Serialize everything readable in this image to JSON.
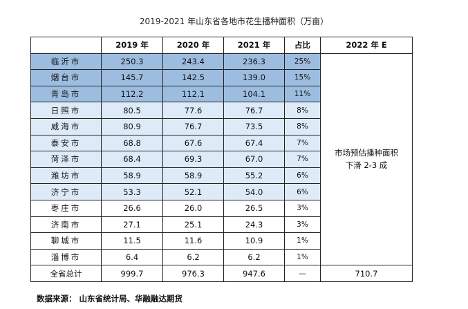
{
  "title": "2019-2021 年山东省各地市花生播种面积（万亩）",
  "headers": [
    "",
    "2019 年",
    "2020 年",
    "2021 年",
    "占比",
    "2022 年 E"
  ],
  "rows": [
    {
      "city": "临沂市",
      "y2019": "250.3",
      "y2020": "243.4",
      "y2021": "236.3",
      "share": "25%",
      "shade": "dark"
    },
    {
      "city": "烟台市",
      "y2019": "145.7",
      "y2020": "142.5",
      "y2021": "139.0",
      "share": "15%",
      "shade": "dark"
    },
    {
      "city": "青岛市",
      "y2019": "112.2",
      "y2020": "112.1",
      "y2021": "104.1",
      "share": "11%",
      "shade": "dark"
    },
    {
      "city": "日照市",
      "y2019": "80.5",
      "y2020": "77.6",
      "y2021": "76.7",
      "share": "8%",
      "shade": "light"
    },
    {
      "city": "威海市",
      "y2019": "80.9",
      "y2020": "76.7",
      "y2021": "73.5",
      "share": "8%",
      "shade": "light"
    },
    {
      "city": "泰安市",
      "y2019": "68.8",
      "y2020": "67.6",
      "y2021": "67.4",
      "share": "7%",
      "shade": "light"
    },
    {
      "city": "菏泽市",
      "y2019": "68.4",
      "y2020": "69.3",
      "y2021": "67.0",
      "share": "7%",
      "shade": "light"
    },
    {
      "city": "潍坊市",
      "y2019": "58.9",
      "y2020": "58.9",
      "y2021": "55.2",
      "share": "6%",
      "shade": "light"
    },
    {
      "city": "济宁市",
      "y2019": "53.3",
      "y2020": "52.1",
      "y2021": "54.0",
      "share": "6%",
      "shade": "light"
    },
    {
      "city": "枣庄市",
      "y2019": "26.6",
      "y2020": "26.0",
      "y2021": "26.5",
      "share": "3%",
      "shade": "plain"
    },
    {
      "city": "济南市",
      "y2019": "27.1",
      "y2020": "25.1",
      "y2021": "24.3",
      "share": "3%",
      "shade": "plain"
    },
    {
      "city": "聊城市",
      "y2019": "11.5",
      "y2020": "11.6",
      "y2021": "10.9",
      "share": "1%",
      "shade": "plain"
    },
    {
      "city": "淄博市",
      "y2019": "6.4",
      "y2020": "6.2",
      "y2021": "6.2",
      "share": "1%",
      "shade": "plain"
    }
  ],
  "note": {
    "line1": "市场预估播种面积",
    "line2": "下滑 2-3 成"
  },
  "total": {
    "label": "全省总计",
    "y2019": "999.7",
    "y2020": "976.3",
    "y2021": "947.6",
    "share": "—",
    "y2022e": "710.7"
  },
  "source": "数据来源：    山东省统计局、华融融达期货",
  "colors": {
    "dark": "#9dbde0",
    "light": "#ddeaf7",
    "plain": "#ffffff"
  }
}
